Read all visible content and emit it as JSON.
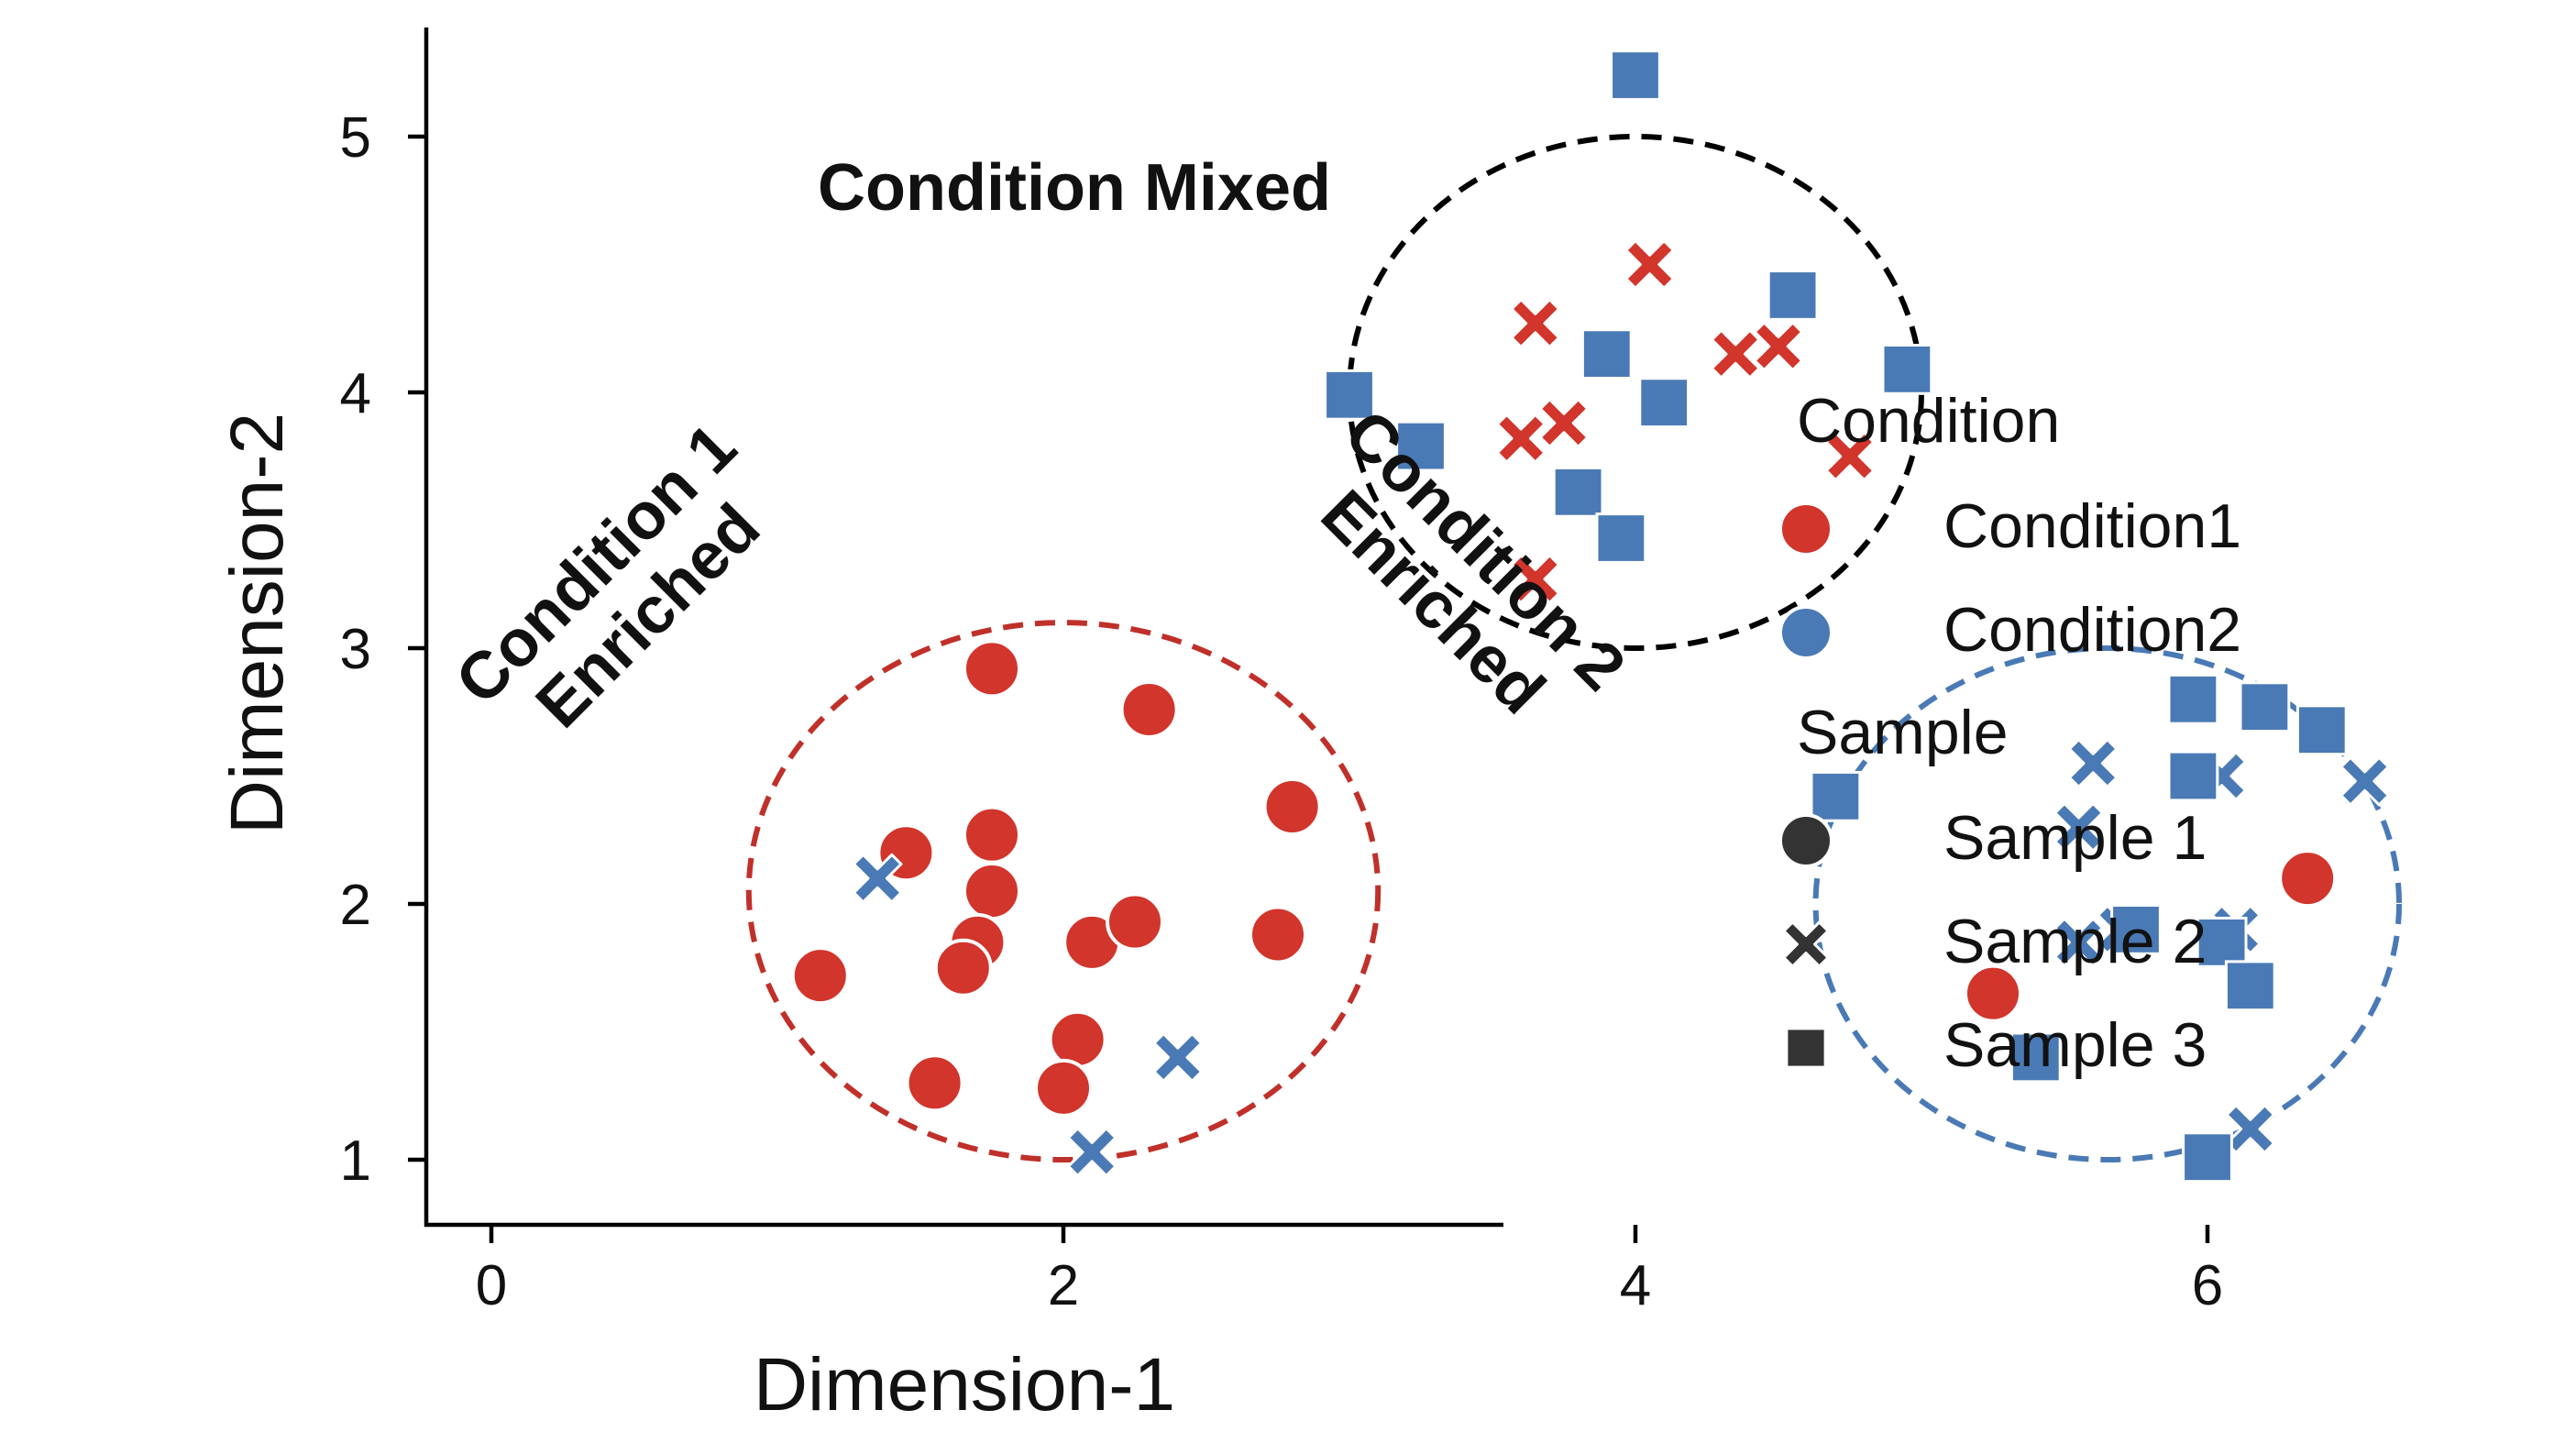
{
  "chart_data": {
    "type": "scatter",
    "xlabel": "Dimension-1",
    "ylabel": "Dimension-2",
    "xlim": [
      -0.5,
      7
    ],
    "ylim": [
      0.8,
      5.5
    ],
    "x_ticks": [
      "0",
      "2",
      "4",
      "6"
    ],
    "y_ticks": [
      "1",
      "2",
      "3",
      "4",
      "5"
    ],
    "grid": false,
    "legend_placement": "right",
    "colors": {
      "Condition1": "#d1352b",
      "Condition2": "#4a7ab5",
      "legend_shape": "#333333"
    },
    "legend": {
      "condition_title": "Condition",
      "condition_entries": [
        "Condition1",
        "Condition2"
      ],
      "sample_title": "Sample",
      "sample_entries": [
        "Sample 1",
        "Sample 2",
        "Sample 3"
      ]
    },
    "annotations": {
      "mixed": "Condition Mixed",
      "c1_line1": "Condition 1",
      "c1_line2": "Enriched",
      "c2_line1": "Condition 2",
      "c2_line2": "Enriched"
    },
    "ellipses": [
      {
        "name": "condition-mixed",
        "cx": 4.0,
        "cy": 4.0,
        "rx": 1.0,
        "ry": 1.0,
        "color": "#000000"
      },
      {
        "name": "condition1-enriched",
        "cx": 2.0,
        "cy": 2.05,
        "rx": 1.1,
        "ry": 1.05,
        "color": "#c0302a"
      },
      {
        "name": "condition2-enriched",
        "cx": 5.65,
        "cy": 2.0,
        "rx": 1.02,
        "ry": 1.0,
        "color": "#4a7ab5"
      }
    ],
    "series": [
      {
        "condition": "Condition1",
        "sample": "Sample 1",
        "points": [
          [
            1.75,
            2.92
          ],
          [
            2.3,
            2.76
          ],
          [
            2.8,
            2.38
          ],
          [
            1.75,
            2.27
          ],
          [
            1.45,
            2.2
          ],
          [
            1.75,
            2.05
          ],
          [
            1.7,
            1.85
          ],
          [
            1.65,
            1.75
          ],
          [
            2.1,
            1.85
          ],
          [
            2.25,
            1.93
          ],
          [
            2.75,
            1.88
          ],
          [
            1.15,
            1.72
          ],
          [
            2.05,
            1.47
          ],
          [
            2.0,
            1.28
          ],
          [
            1.55,
            1.3
          ],
          [
            5.25,
            1.65
          ],
          [
            6.35,
            2.1
          ]
        ]
      },
      {
        "condition": "Condition1",
        "sample": "Sample 2",
        "points": [
          [
            4.05,
            4.5
          ],
          [
            3.65,
            4.27
          ],
          [
            4.5,
            4.18
          ],
          [
            4.35,
            4.15
          ],
          [
            3.75,
            3.88
          ],
          [
            3.6,
            3.82
          ],
          [
            4.75,
            3.75
          ],
          [
            3.65,
            3.27
          ]
        ]
      },
      {
        "condition": "Condition2",
        "sample": "Sample 2",
        "points": [
          [
            1.35,
            2.1
          ],
          [
            2.4,
            1.4
          ],
          [
            2.1,
            1.03
          ],
          [
            5.55,
            2.3
          ],
          [
            5.6,
            2.55
          ],
          [
            6.05,
            2.5
          ],
          [
            6.55,
            2.48
          ],
          [
            5.55,
            1.85
          ],
          [
            5.7,
            1.9
          ],
          [
            6.1,
            1.9
          ],
          [
            6.15,
            1.12
          ]
        ]
      },
      {
        "condition": "Condition2",
        "sample": "Sample 3",
        "points": [
          [
            4.0,
            5.24
          ],
          [
            4.55,
            4.38
          ],
          [
            3.9,
            4.15
          ],
          [
            4.1,
            3.96
          ],
          [
            3.0,
            3.99
          ],
          [
            3.25,
            3.79
          ],
          [
            4.95,
            4.09
          ],
          [
            3.8,
            3.61
          ],
          [
            3.95,
            3.43
          ],
          [
            4.7,
            2.42
          ],
          [
            5.95,
            2.8
          ],
          [
            6.2,
            2.77
          ],
          [
            6.4,
            2.68
          ],
          [
            5.95,
            2.5
          ],
          [
            5.75,
            1.9
          ],
          [
            6.05,
            1.85
          ],
          [
            6.15,
            1.68
          ],
          [
            5.4,
            1.4
          ],
          [
            6.0,
            1.01
          ]
        ]
      }
    ]
  }
}
